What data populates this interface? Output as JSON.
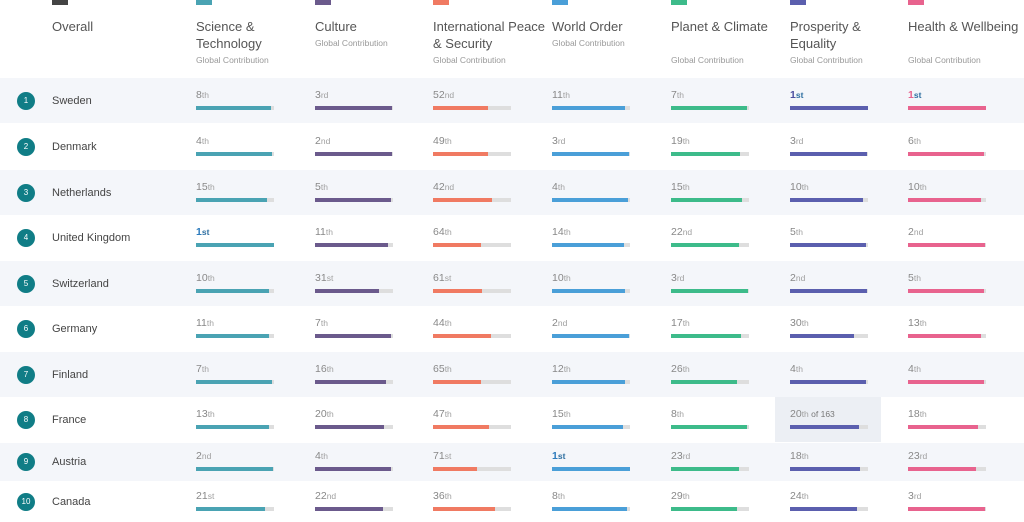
{
  "columns": [
    {
      "key": "overall",
      "title": "Overall",
      "subtitle": "",
      "color": "#444444"
    },
    {
      "key": "sci",
      "title": "Science & Technology",
      "subtitle": "Global Contribution",
      "color": "#4aa3b3"
    },
    {
      "key": "cul",
      "title": "Culture",
      "subtitle": "Global Contribution",
      "color": "#6b5a8c"
    },
    {
      "key": "ips",
      "title": "International Peace & Security",
      "subtitle": "Global Contribution",
      "color": "#f07a62"
    },
    {
      "key": "wo",
      "title": "World Order",
      "subtitle": "Global Contribution",
      "color": "#4a9fd8"
    },
    {
      "key": "pc",
      "title": "Planet & Climate",
      "subtitle": "Global Contribution",
      "color": "#3dbb8a"
    },
    {
      "key": "pe",
      "title": "Prosperity & Equality",
      "subtitle": "Global Contribution",
      "color": "#5b5fae"
    },
    {
      "key": "hw",
      "title": "Health & Wellbeing",
      "subtitle": "Global Contribution",
      "color": "#e8638e"
    }
  ],
  "hover_total": "of 163",
  "countries": [
    {
      "rank": "1",
      "name": "Sweden",
      "ranks": [
        "8",
        "3",
        "52",
        "11",
        "7",
        "1",
        "1"
      ],
      "sufs": [
        "th",
        "rd",
        "nd",
        "th",
        "th",
        "st",
        "st"
      ],
      "fills": [
        0.96,
        0.99,
        0.7,
        0.94,
        0.97,
        1,
        1
      ]
    },
    {
      "rank": "2",
      "name": "Denmark",
      "ranks": [
        "4",
        "2",
        "49",
        "3",
        "19",
        "3",
        "6"
      ],
      "sufs": [
        "th",
        "nd",
        "th",
        "rd",
        "th",
        "rd",
        "th"
      ],
      "fills": [
        0.98,
        0.99,
        0.71,
        0.99,
        0.89,
        0.99,
        0.97
      ]
    },
    {
      "rank": "3",
      "name": "Netherlands",
      "ranks": [
        "15",
        "5",
        "42",
        "4",
        "15",
        "10",
        "10"
      ],
      "sufs": [
        "th",
        "th",
        "nd",
        "th",
        "th",
        "th",
        "th"
      ],
      "fills": [
        0.91,
        0.98,
        0.75,
        0.98,
        0.91,
        0.94,
        0.94
      ]
    },
    {
      "rank": "4",
      "name": "United Kingdom",
      "ranks": [
        "1",
        "11",
        "64",
        "14",
        "22",
        "5",
        "2"
      ],
      "sufs": [
        "st",
        "th",
        "th",
        "th",
        "nd",
        "th",
        "nd"
      ],
      "fills": [
        1,
        0.94,
        0.61,
        0.92,
        0.87,
        0.98,
        0.99
      ]
    },
    {
      "rank": "5",
      "name": "Switzerland",
      "ranks": [
        "10",
        "31",
        "61",
        "10",
        "3",
        "2",
        "5"
      ],
      "sufs": [
        "th",
        "st",
        "st",
        "th",
        "rd",
        "nd",
        "th"
      ],
      "fills": [
        0.94,
        0.82,
        0.63,
        0.94,
        0.99,
        0.99,
        0.98
      ]
    },
    {
      "rank": "6",
      "name": "Germany",
      "ranks": [
        "11",
        "7",
        "44",
        "2",
        "17",
        "30",
        "13"
      ],
      "sufs": [
        "th",
        "th",
        "th",
        "nd",
        "th",
        "th",
        "th"
      ],
      "fills": [
        0.94,
        0.97,
        0.74,
        0.99,
        0.9,
        0.82,
        0.93
      ]
    },
    {
      "rank": "7",
      "name": "Finland",
      "ranks": [
        "7",
        "16",
        "65",
        "12",
        "26",
        "4",
        "4"
      ],
      "sufs": [
        "th",
        "th",
        "th",
        "th",
        "th",
        "th",
        "th"
      ],
      "fills": [
        0.97,
        0.91,
        0.61,
        0.93,
        0.85,
        0.98,
        0.98
      ]
    },
    {
      "rank": "8",
      "name": "France",
      "ranks": [
        "13",
        "20",
        "47",
        "15",
        "8",
        "20",
        "18"
      ],
      "sufs": [
        "th",
        "th",
        "th",
        "th",
        "th",
        "th",
        "th"
      ],
      "fills": [
        0.93,
        0.89,
        0.72,
        0.91,
        0.97,
        0.89,
        0.9
      ]
    },
    {
      "rank": "9",
      "name": "Austria",
      "ranks": [
        "2",
        "4",
        "71",
        "1",
        "23",
        "18",
        "23"
      ],
      "sufs": [
        "nd",
        "th",
        "st",
        "st",
        "rd",
        "th",
        "rd"
      ],
      "fills": [
        0.99,
        0.98,
        0.57,
        1,
        0.87,
        0.9,
        0.87
      ]
    },
    {
      "rank": "10",
      "name": "Canada",
      "ranks": [
        "21",
        "22",
        "36",
        "8",
        "29",
        "24",
        "3"
      ],
      "sufs": [
        "st",
        "nd",
        "th",
        "th",
        "th",
        "th",
        "rd"
      ],
      "fills": [
        0.88,
        0.87,
        0.79,
        0.96,
        0.84,
        0.86,
        0.99
      ]
    }
  ]
}
